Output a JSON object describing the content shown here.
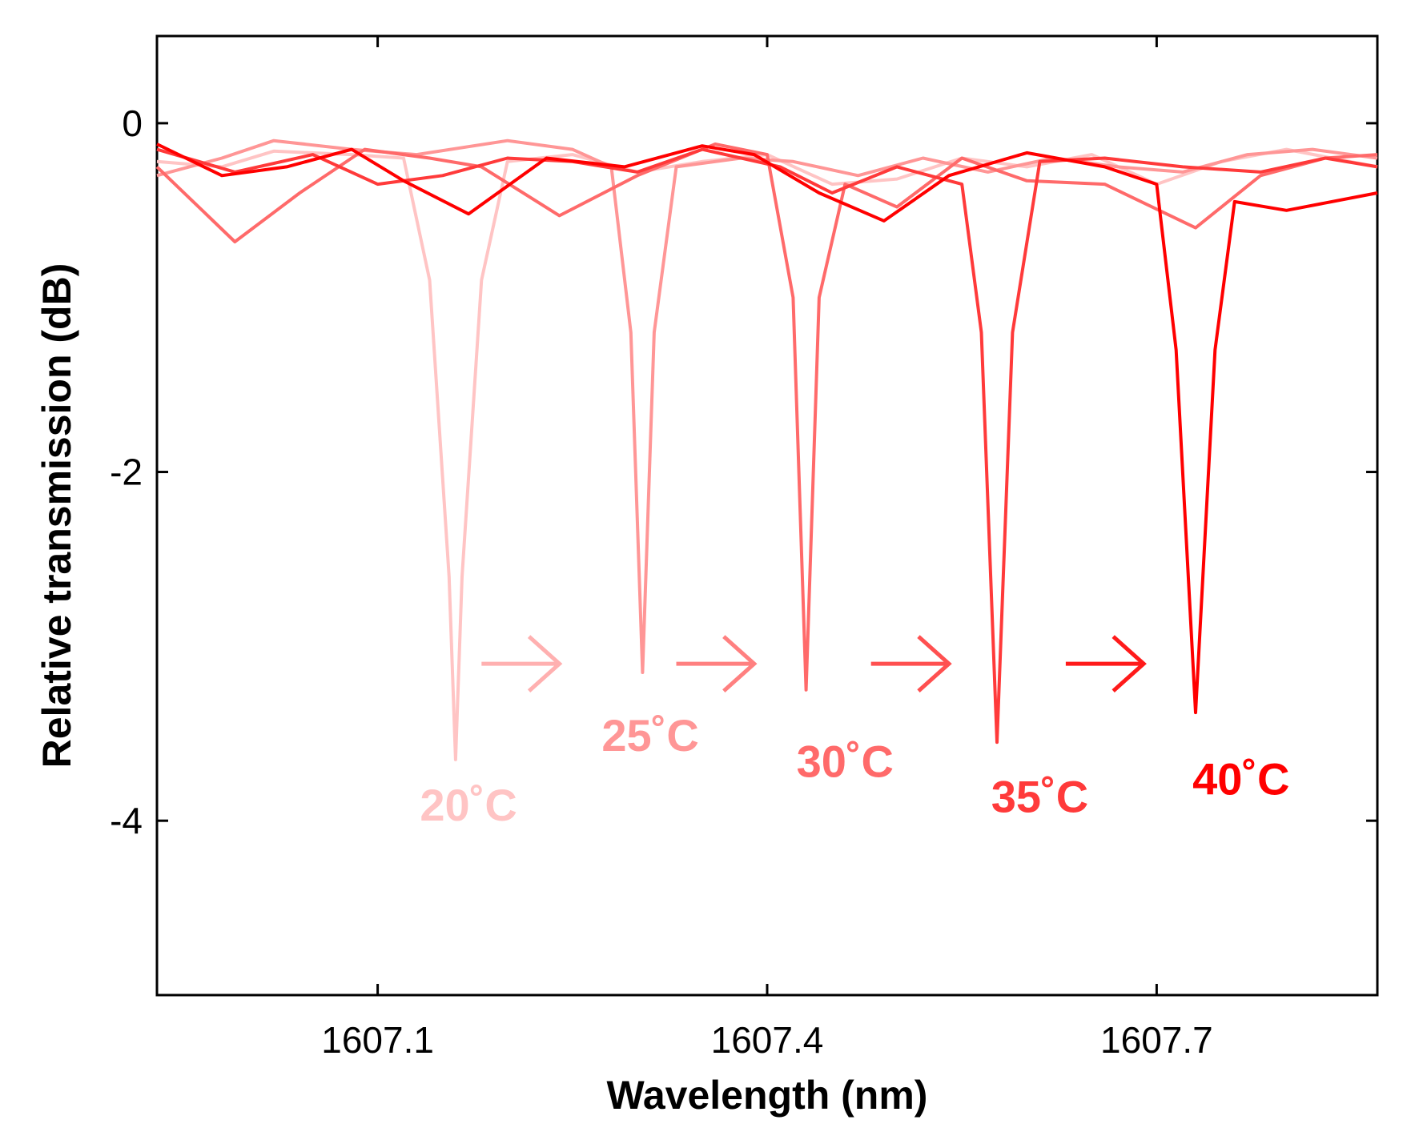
{
  "chart_data": {
    "type": "line",
    "title": "",
    "xlabel": "Wavelength (nm)",
    "ylabel": "Relative transmission (dB)",
    "xlim": [
      1606.93,
      1607.87
    ],
    "ylim": [
      -5,
      0.5
    ],
    "xticks": [
      1607.1,
      1607.4,
      1607.7
    ],
    "xtick_labels": [
      "1607.1",
      "1607.4",
      "1607.7"
    ],
    "yticks": [
      0,
      -2,
      -4
    ],
    "ytick_labels": [
      "0",
      "-2",
      "-4"
    ],
    "grid": false,
    "series": [
      {
        "name": "20˚C",
        "color": "#ffc4c4",
        "label": "20˚C",
        "dip": {
          "center": 1607.16,
          "depth": -3.65
        },
        "points": [
          [
            1606.93,
            -0.22
          ],
          [
            1606.98,
            -0.25
          ],
          [
            1607.02,
            -0.16
          ],
          [
            1607.08,
            -0.18
          ],
          [
            1607.12,
            -0.2
          ],
          [
            1607.14,
            -0.9
          ],
          [
            1607.155,
            -2.6
          ],
          [
            1607.16,
            -3.65
          ],
          [
            1607.165,
            -2.6
          ],
          [
            1607.18,
            -0.9
          ],
          [
            1607.2,
            -0.22
          ],
          [
            1607.25,
            -0.18
          ],
          [
            1607.3,
            -0.28
          ],
          [
            1607.35,
            -0.22
          ],
          [
            1607.4,
            -0.18
          ],
          [
            1607.45,
            -0.35
          ],
          [
            1607.5,
            -0.32
          ],
          [
            1607.55,
            -0.2
          ],
          [
            1607.6,
            -0.25
          ],
          [
            1607.65,
            -0.18
          ],
          [
            1607.7,
            -0.35
          ],
          [
            1607.75,
            -0.22
          ],
          [
            1607.8,
            -0.15
          ],
          [
            1607.87,
            -0.25
          ]
        ]
      },
      {
        "name": "25˚C",
        "color": "#ff9696",
        "label": "25˚C",
        "dip": {
          "center": 1607.304,
          "depth": -3.15
        },
        "points": [
          [
            1606.93,
            -0.3
          ],
          [
            1606.98,
            -0.2
          ],
          [
            1607.02,
            -0.1
          ],
          [
            1607.08,
            -0.15
          ],
          [
            1607.13,
            -0.18
          ],
          [
            1607.2,
            -0.1
          ],
          [
            1607.25,
            -0.15
          ],
          [
            1607.28,
            -0.25
          ],
          [
            1607.295,
            -1.2
          ],
          [
            1607.304,
            -3.15
          ],
          [
            1607.313,
            -1.2
          ],
          [
            1607.33,
            -0.25
          ],
          [
            1607.38,
            -0.2
          ],
          [
            1607.42,
            -0.22
          ],
          [
            1607.47,
            -0.3
          ],
          [
            1607.52,
            -0.2
          ],
          [
            1607.57,
            -0.28
          ],
          [
            1607.62,
            -0.2
          ],
          [
            1607.67,
            -0.25
          ],
          [
            1607.72,
            -0.28
          ],
          [
            1607.77,
            -0.18
          ],
          [
            1607.82,
            -0.15
          ],
          [
            1607.87,
            -0.2
          ]
        ]
      },
      {
        "name": "30˚C",
        "color": "#ff6a6a",
        "label": "30˚C",
        "dip": {
          "center": 1607.43,
          "depth": -3.25
        },
        "points": [
          [
            1606.93,
            -0.25
          ],
          [
            1606.99,
            -0.68
          ],
          [
            1607.04,
            -0.4
          ],
          [
            1607.09,
            -0.15
          ],
          [
            1607.14,
            -0.2
          ],
          [
            1607.18,
            -0.25
          ],
          [
            1607.24,
            -0.53
          ],
          [
            1607.3,
            -0.3
          ],
          [
            1607.36,
            -0.12
          ],
          [
            1607.4,
            -0.18
          ],
          [
            1607.42,
            -1.0
          ],
          [
            1607.43,
            -3.25
          ],
          [
            1607.44,
            -1.0
          ],
          [
            1607.46,
            -0.35
          ],
          [
            1607.5,
            -0.48
          ],
          [
            1607.55,
            -0.2
          ],
          [
            1607.6,
            -0.33
          ],
          [
            1607.66,
            -0.35
          ],
          [
            1607.73,
            -0.6
          ],
          [
            1607.78,
            -0.3
          ],
          [
            1607.83,
            -0.2
          ],
          [
            1607.87,
            -0.18
          ]
        ]
      },
      {
        "name": "35˚C",
        "color": "#ff3a3a",
        "label": "35˚C",
        "dip": {
          "center": 1607.577,
          "depth": -3.55
        },
        "points": [
          [
            1606.93,
            -0.15
          ],
          [
            1606.99,
            -0.28
          ],
          [
            1607.05,
            -0.18
          ],
          [
            1607.1,
            -0.35
          ],
          [
            1607.15,
            -0.3
          ],
          [
            1607.2,
            -0.2
          ],
          [
            1607.25,
            -0.22
          ],
          [
            1607.3,
            -0.28
          ],
          [
            1607.35,
            -0.15
          ],
          [
            1607.41,
            -0.25
          ],
          [
            1607.45,
            -0.4
          ],
          [
            1607.5,
            -0.25
          ],
          [
            1607.55,
            -0.35
          ],
          [
            1607.565,
            -1.2
          ],
          [
            1607.577,
            -3.55
          ],
          [
            1607.589,
            -1.2
          ],
          [
            1607.61,
            -0.22
          ],
          [
            1607.66,
            -0.2
          ],
          [
            1607.72,
            -0.25
          ],
          [
            1607.78,
            -0.28
          ],
          [
            1607.83,
            -0.2
          ],
          [
            1607.87,
            -0.25
          ]
        ]
      },
      {
        "name": "40˚C",
        "color": "#ff0000",
        "label": "40˚C",
        "dip": {
          "center": 1607.73,
          "depth": -3.38
        },
        "points": [
          [
            1606.93,
            -0.12
          ],
          [
            1606.98,
            -0.3
          ],
          [
            1607.03,
            -0.25
          ],
          [
            1607.08,
            -0.15
          ],
          [
            1607.12,
            -0.33
          ],
          [
            1607.17,
            -0.52
          ],
          [
            1607.23,
            -0.2
          ],
          [
            1607.29,
            -0.25
          ],
          [
            1607.35,
            -0.13
          ],
          [
            1607.39,
            -0.18
          ],
          [
            1607.44,
            -0.4
          ],
          [
            1607.49,
            -0.56
          ],
          [
            1607.54,
            -0.3
          ],
          [
            1607.6,
            -0.17
          ],
          [
            1607.66,
            -0.25
          ],
          [
            1607.7,
            -0.35
          ],
          [
            1607.715,
            -1.3
          ],
          [
            1607.73,
            -3.38
          ],
          [
            1607.745,
            -1.3
          ],
          [
            1607.76,
            -0.45
          ],
          [
            1607.8,
            -0.5
          ],
          [
            1607.87,
            -0.4
          ]
        ]
      }
    ],
    "annotations": {
      "labels": [
        {
          "text": "20˚C",
          "x": 1607.17,
          "y": -4.0,
          "color": "#ffc4c4"
        },
        {
          "text": "25˚C",
          "x": 1607.31,
          "y": -3.6,
          "color": "#ff9696"
        },
        {
          "text": "30˚C",
          "x": 1607.46,
          "y": -3.75,
          "color": "#ff6a6a"
        },
        {
          "text": "35˚C",
          "x": 1607.61,
          "y": -3.95,
          "color": "#ff3a3a"
        },
        {
          "text": "40˚C",
          "x": 1607.765,
          "y": -3.85,
          "color": "#ff0000"
        }
      ],
      "arrows": [
        {
          "x_start": 1607.18,
          "x_end": 1607.24,
          "y": -3.1,
          "color": "#ffb0b0"
        },
        {
          "x_start": 1607.33,
          "x_end": 1607.39,
          "y": -3.1,
          "color": "#ff8080"
        },
        {
          "x_start": 1607.48,
          "x_end": 1607.54,
          "y": -3.1,
          "color": "#ff5050"
        },
        {
          "x_start": 1607.63,
          "x_end": 1607.69,
          "y": -3.1,
          "color": "#ff1a1a"
        }
      ]
    }
  }
}
